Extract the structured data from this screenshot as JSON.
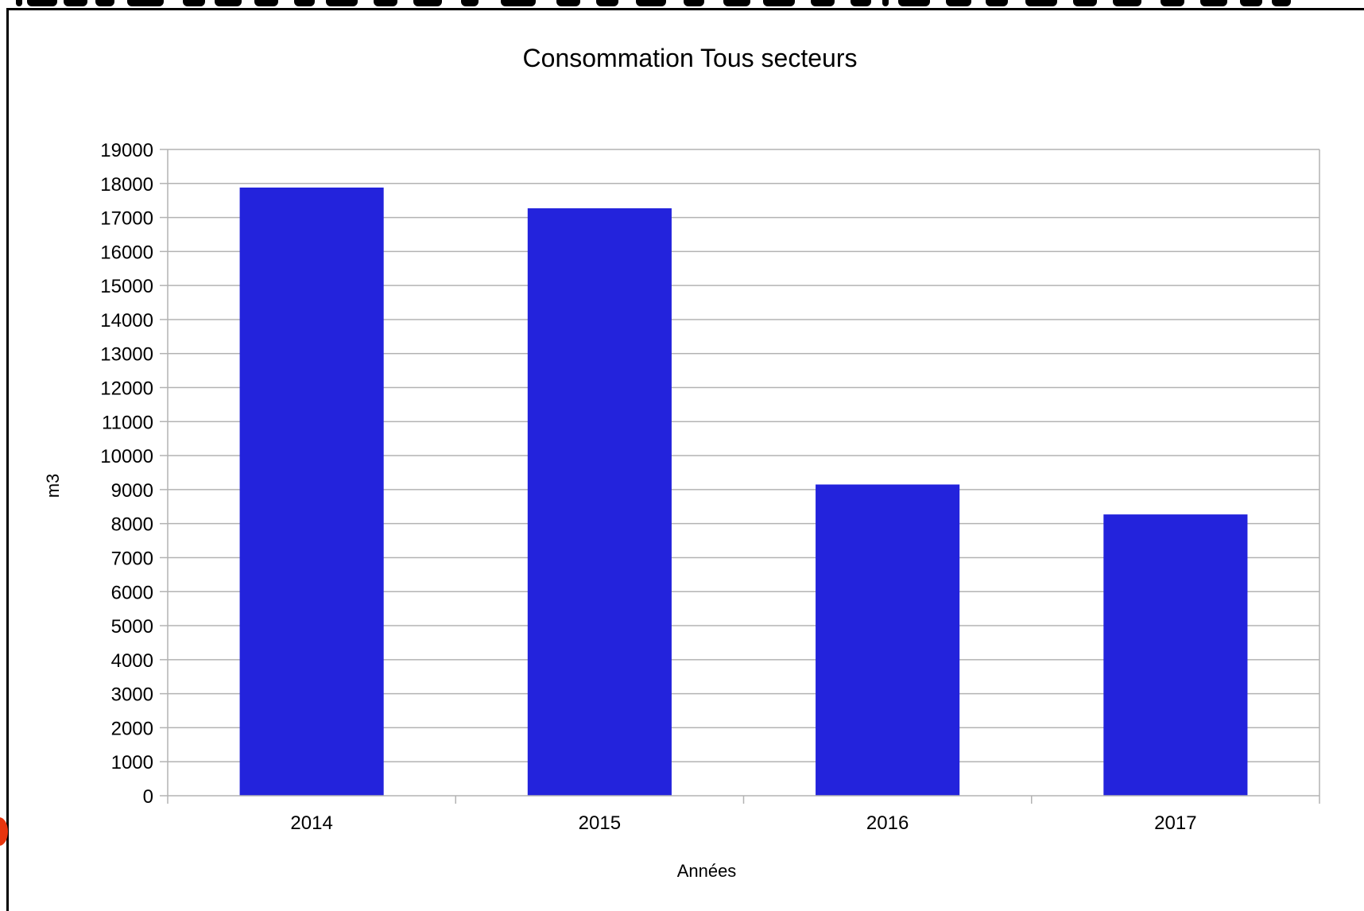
{
  "chart_data": {
    "type": "bar",
    "title": "Consommation Tous secteurs",
    "xlabel": "Années",
    "ylabel": "m3",
    "categories": [
      "2014",
      "2015",
      "2016",
      "2017"
    ],
    "values": [
      17880,
      17270,
      9150,
      8270
    ],
    "ylim": [
      0,
      19000
    ],
    "ytick_step": 1000,
    "yticks": [
      "0",
      "1000",
      "2000",
      "3000",
      "4000",
      "5000",
      "6000",
      "7000",
      "8000",
      "9000",
      "10000",
      "11000",
      "12000",
      "13000",
      "14000",
      "15000",
      "16000",
      "17000",
      "18000",
      "19000"
    ],
    "grid": true,
    "legend": "none",
    "bar_color": "#2323dc",
    "grid_color": "#b3b3b3"
  }
}
